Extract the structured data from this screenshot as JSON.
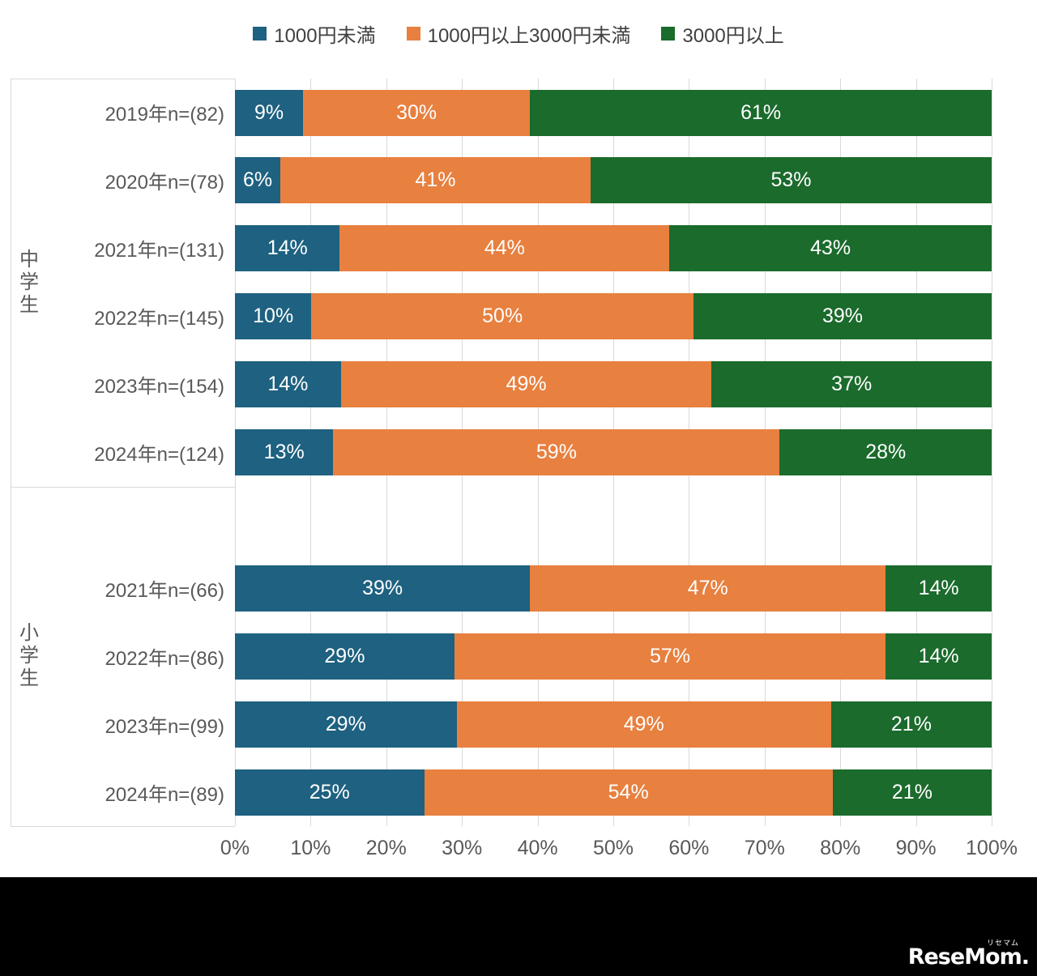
{
  "legend": {
    "items": [
      {
        "label": "1000円未満",
        "color": "#1e6180"
      },
      {
        "label": "1000円以上3000円未満",
        "color": "#e8803f"
      },
      {
        "label": "3000円以上",
        "color": "#1b6b2c"
      }
    ]
  },
  "chart_data": {
    "type": "bar",
    "stacked": true,
    "orientation": "horizontal",
    "series_names": [
      "1000円未満",
      "1000円以上3000円未満",
      "3000円以上"
    ],
    "colors": [
      "#1e6180",
      "#e8803f",
      "#1b6b2c"
    ],
    "value_suffix": "%",
    "grid": true,
    "legend_position": "top",
    "x_axis": {
      "min": 0,
      "max": 100,
      "ticks": [
        "0%",
        "10%",
        "20%",
        "30%",
        "40%",
        "50%",
        "60%",
        "70%",
        "80%",
        "90%",
        "100%"
      ]
    },
    "groups": [
      {
        "label": "中学生",
        "spacer_before": 0,
        "rows": [
          {
            "label": "2019年n=(82)",
            "values": [
              9,
              30,
              61
            ]
          },
          {
            "label": "2020年n=(78)",
            "values": [
              6,
              41,
              53
            ]
          },
          {
            "label": "2021年n=(131)",
            "values": [
              14,
              44,
              43
            ]
          },
          {
            "label": "2022年n=(145)",
            "values": [
              10,
              50,
              39
            ]
          },
          {
            "label": "2023年n=(154)",
            "values": [
              14,
              49,
              37
            ]
          },
          {
            "label": "2024年n=(124)",
            "values": [
              13,
              59,
              28
            ]
          }
        ]
      },
      {
        "label": "小学生",
        "spacer_before": 1,
        "rows": [
          {
            "label": "2021年n=(66)",
            "values": [
              39,
              47,
              14
            ]
          },
          {
            "label": "2022年n=(86)",
            "values": [
              29,
              57,
              14
            ]
          },
          {
            "label": "2023年n=(99)",
            "values": [
              29,
              49,
              21
            ]
          },
          {
            "label": "2024年n=(89)",
            "values": [
              25,
              54,
              21
            ]
          }
        ]
      }
    ]
  },
  "footer": {
    "logo_text": "ReseMom.",
    "logo_sub": "リセマム"
  }
}
